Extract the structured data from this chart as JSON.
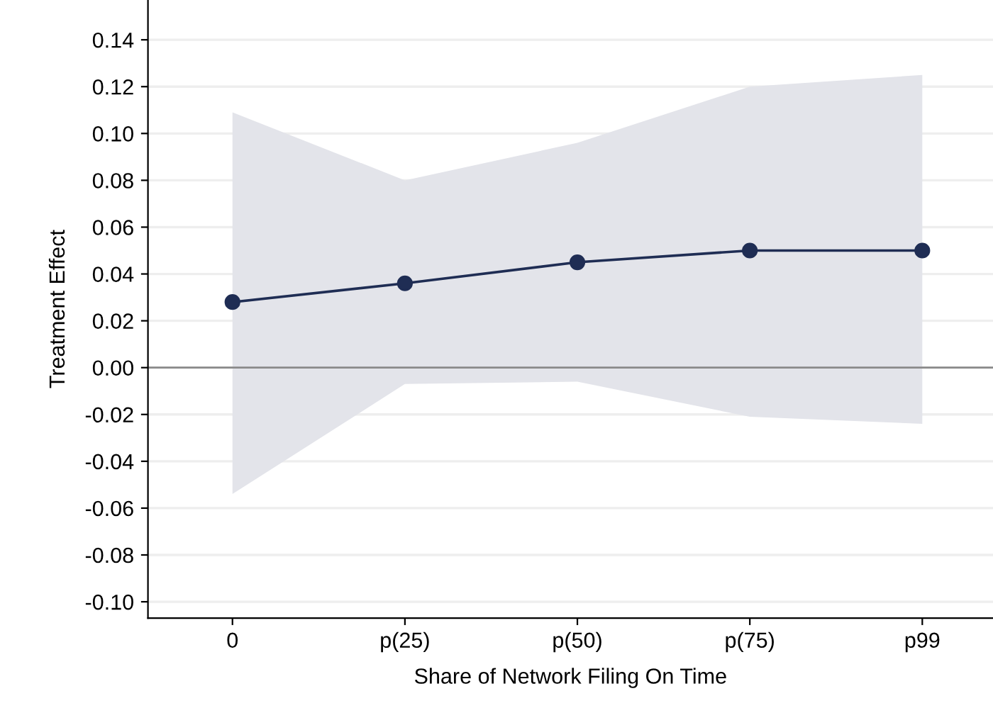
{
  "chart_data": {
    "type": "line",
    "xlabel": "Share of Network Filing On Time",
    "ylabel": "Treatment Effect",
    "categories": [
      "0",
      "p(25)",
      "p(50)",
      "p(75)",
      "p99"
    ],
    "series": [
      {
        "color": "#1f2d54",
        "values": [
          0.028,
          0.036,
          0.045,
          0.05,
          0.05
        ],
        "lower": [
          -0.054,
          -0.007,
          -0.006,
          -0.021,
          -0.024
        ],
        "upper": [
          0.109,
          0.08,
          0.096,
          0.12,
          0.125
        ]
      }
    ],
    "ylim": [
      -0.107,
      0.157
    ],
    "yticks": [
      {
        "value": -0.1,
        "label": "-0.10"
      },
      {
        "value": -0.08,
        "label": "-0.08"
      },
      {
        "value": -0.06,
        "label": "-0.06"
      },
      {
        "value": -0.04,
        "label": "-0.04"
      },
      {
        "value": -0.02,
        "label": "-0.02"
      },
      {
        "value": 0,
        "label": "0.00"
      },
      {
        "value": 0.02,
        "label": "0.02"
      },
      {
        "value": 0.04,
        "label": "0.04"
      },
      {
        "value": 0.06,
        "label": "0.06"
      },
      {
        "value": 0.08,
        "label": "0.08"
      },
      {
        "value": 0.1,
        "label": "0.10"
      },
      {
        "value": 0.12,
        "label": "0.12"
      },
      {
        "value": 0.14,
        "label": "0.14"
      }
    ],
    "ref_lines": [
      {
        "axis": "y",
        "value": 0,
        "color": "#8a8a8a"
      }
    ],
    "grid": "y",
    "marker": "circle",
    "line_style": "solid",
    "legend": false
  }
}
